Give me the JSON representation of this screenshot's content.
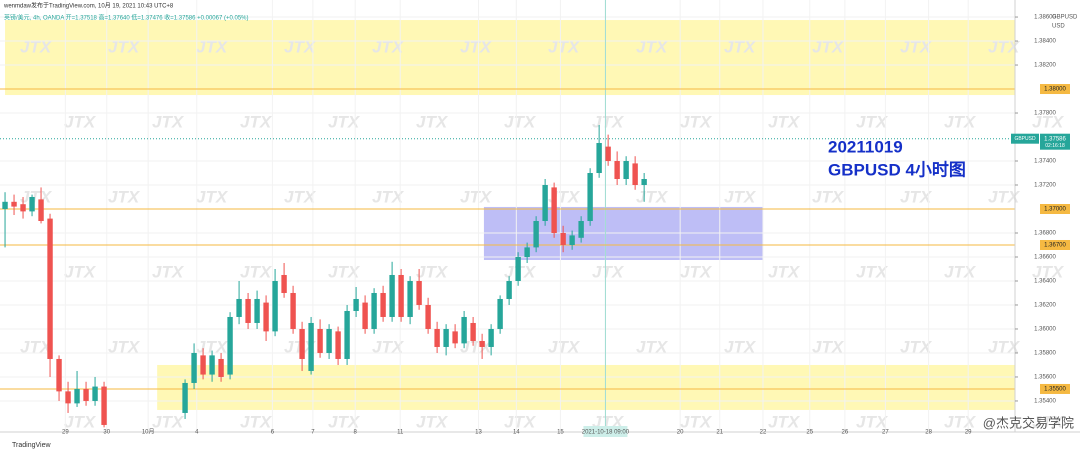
{
  "header": {
    "line1": "wenmdaw发布于TradingView.com, 10月 19, 2021 10:43 UTC+8",
    "line2": "英镑/美元, 4h, OANDA  开=1.37518 高=1.37640 低=1.37476 收=1.37586 +0.00067 (+0.05%)"
  },
  "chart_data": {
    "type": "candlestick",
    "annotation": [
      "20211019",
      "GBPUSD 4小时图"
    ],
    "symbol": "GBPUSD",
    "currency": "USD",
    "up_color": "#26a69a",
    "down_color": "#ef5350",
    "x": [
      0,
      1,
      2,
      3,
      4,
      5,
      6,
      7,
      8,
      9,
      10,
      11,
      20,
      21,
      22,
      23,
      24,
      25,
      26,
      27,
      28,
      29,
      30,
      31,
      32,
      33,
      34,
      35,
      36,
      37,
      38,
      39,
      40,
      41,
      42,
      43,
      44,
      45,
      46,
      47,
      48,
      49,
      50,
      51,
      52,
      53,
      54,
      55,
      56,
      57,
      58,
      59,
      60,
      61,
      62,
      63,
      64,
      65,
      66,
      67,
      68,
      69,
      70,
      71
    ],
    "open": [
      1.37,
      1.3706,
      1.3704,
      1.3698,
      1.3708,
      1.3692,
      1.3575,
      1.3548,
      1.3538,
      1.355,
      1.354,
      1.3552,
      1.353,
      1.3555,
      1.3578,
      1.3562,
      1.3575,
      1.3562,
      1.361,
      1.3625,
      1.3605,
      1.3622,
      1.3598,
      1.3645,
      1.363,
      1.36,
      1.3565,
      1.36,
      1.358,
      1.3598,
      1.3575,
      1.3615,
      1.3622,
      1.36,
      1.363,
      1.361,
      1.3645,
      1.361,
      1.364,
      1.362,
      1.36,
      1.3585,
      1.3598,
      1.3588,
      1.3605,
      1.359,
      1.3585,
      1.36,
      1.3625,
      1.364,
      1.366,
      1.3668,
      1.369,
      1.3718,
      1.368,
      1.367,
      1.3676,
      1.369,
      1.373,
      1.3752,
      1.374,
      1.3725,
      1.3738,
      1.372
    ],
    "high": [
      1.3714,
      1.3712,
      1.371,
      1.3712,
      1.3718,
      1.3696,
      1.3578,
      1.3556,
      1.3565,
      1.3556,
      1.356,
      1.3556,
      1.3558,
      1.3588,
      1.3584,
      1.3582,
      1.358,
      1.3614,
      1.364,
      1.363,
      1.3632,
      1.3628,
      1.365,
      1.3655,
      1.3636,
      1.3606,
      1.361,
      1.3608,
      1.3604,
      1.3602,
      1.362,
      1.3635,
      1.3628,
      1.3634,
      1.3636,
      1.3656,
      1.365,
      1.3644,
      1.365,
      1.3626,
      1.3606,
      1.3604,
      1.3604,
      1.3615,
      1.361,
      1.3596,
      1.3604,
      1.3628,
      1.3644,
      1.3664,
      1.3672,
      1.3694,
      1.3725,
      1.3722,
      1.3686,
      1.3682,
      1.3694,
      1.3734,
      1.377,
      1.3762,
      1.3748,
      1.3744,
      1.3744,
      1.373
    ],
    "low": [
      1.3668,
      1.3695,
      1.3692,
      1.3694,
      1.3688,
      1.356,
      1.354,
      1.353,
      1.3535,
      1.3536,
      1.3536,
      1.3518,
      1.3525,
      1.355,
      1.3558,
      1.3556,
      1.3556,
      1.3558,
      1.3604,
      1.36,
      1.36,
      1.359,
      1.3594,
      1.3626,
      1.3596,
      1.3565,
      1.3562,
      1.3576,
      1.3575,
      1.357,
      1.357,
      1.361,
      1.3596,
      1.3596,
      1.3606,
      1.3606,
      1.3606,
      1.3604,
      1.3616,
      1.3596,
      1.358,
      1.3578,
      1.3584,
      1.3584,
      1.3586,
      1.3575,
      1.3578,
      1.3596,
      1.362,
      1.3636,
      1.3655,
      1.3664,
      1.3686,
      1.3676,
      1.3664,
      1.3666,
      1.3672,
      1.3686,
      1.3726,
      1.3736,
      1.372,
      1.372,
      1.3716,
      1.3706
    ],
    "close": [
      1.3706,
      1.3702,
      1.3698,
      1.371,
      1.369,
      1.3575,
      1.3548,
      1.3538,
      1.355,
      1.354,
      1.3552,
      1.352,
      1.3555,
      1.358,
      1.3562,
      1.3578,
      1.356,
      1.361,
      1.3625,
      1.3605,
      1.3625,
      1.3598,
      1.364,
      1.363,
      1.36,
      1.3575,
      1.3605,
      1.358,
      1.36,
      1.3575,
      1.3615,
      1.3625,
      1.36,
      1.363,
      1.361,
      1.3645,
      1.361,
      1.364,
      1.362,
      1.36,
      1.3585,
      1.36,
      1.3588,
      1.361,
      1.359,
      1.3585,
      1.36,
      1.3625,
      1.364,
      1.366,
      1.3668,
      1.369,
      1.372,
      1.368,
      1.367,
      1.3678,
      1.369,
      1.373,
      1.3755,
      1.374,
      1.3725,
      1.374,
      1.372,
      1.3725
    ],
    "xlim": [
      -0.56,
      112.2
    ],
    "ylim": [
      1.35158,
      1.38742
    ],
    "grid": true,
    "yticks": [
      {
        "value": 1.386,
        "label": "1.38600"
      },
      {
        "value": 1.384,
        "label": "1.38400"
      },
      {
        "value": 1.382,
        "label": "1.38200"
      },
      {
        "value": 1.378,
        "label": "1.37800"
      },
      {
        "value": 1.374,
        "label": "1.37400"
      },
      {
        "value": 1.372,
        "label": "1.37200"
      },
      {
        "value": 1.368,
        "label": "1.36800"
      },
      {
        "value": 1.366,
        "label": "1.36600"
      },
      {
        "value": 1.364,
        "label": "1.36400"
      },
      {
        "value": 1.362,
        "label": "1.36200"
      },
      {
        "value": 1.36,
        "label": "1.36000"
      },
      {
        "value": 1.358,
        "label": "1.35800"
      },
      {
        "value": 1.356,
        "label": "1.35600"
      },
      {
        "value": 1.354,
        "label": "1.35400"
      }
    ],
    "xticks": [
      {
        "value": 6.7,
        "label": "29"
      },
      {
        "value": 11.3,
        "label": "30"
      },
      {
        "value": 15.9,
        "label": "10月"
      },
      {
        "value": 21.3,
        "label": "4"
      },
      {
        "value": 29.7,
        "label": "6"
      },
      {
        "value": 34.2,
        "label": "7"
      },
      {
        "value": 38.9,
        "label": "8"
      },
      {
        "value": 43.9,
        "label": "11"
      },
      {
        "value": 52.6,
        "label": "13"
      },
      {
        "value": 56.8,
        "label": "14"
      },
      {
        "value": 61.7,
        "label": "15"
      },
      {
        "value": 66.7,
        "label": "2021-10-18  09:00"
      },
      {
        "value": 75,
        "label": "20"
      },
      {
        "value": 79.4,
        "label": "21"
      },
      {
        "value": 84.2,
        "label": "22"
      },
      {
        "value": 89.4,
        "label": "25"
      },
      {
        "value": 93.3,
        "label": "26"
      },
      {
        "value": 97.8,
        "label": "27"
      },
      {
        "value": 102.6,
        "label": "28"
      },
      {
        "value": 107,
        "label": "29"
      }
    ],
    "crosshair_x": 66.7,
    "levels": [
      {
        "value": 1.38,
        "label": "1.38000"
      },
      {
        "value": 1.37,
        "label": "1.37000"
      },
      {
        "value": 1.367,
        "label": "1.36700"
      },
      {
        "value": 1.355,
        "label": "1.35500"
      }
    ],
    "level_color": "#f5b942",
    "zones": [
      {
        "x": [
          0,
          112.2
        ],
        "y": [
          1.3795,
          1.38575
        ],
        "color": "#fff7a8"
      },
      {
        "x": [
          16.9,
          112.2
        ],
        "y": [
          1.35325,
          1.357
        ],
        "color": "#fff7a8"
      },
      {
        "x": [
          53.2,
          84.2
        ],
        "y": [
          1.36575,
          1.37017
        ],
        "color": "#b3b3f5"
      }
    ],
    "current": {
      "value": 1.37586,
      "label": "1.37586",
      "countdown": "02:16:18"
    }
  },
  "watermark": "JTX",
  "footer": {
    "brand": "TradingView",
    "credit": "@杰克交易学院"
  }
}
